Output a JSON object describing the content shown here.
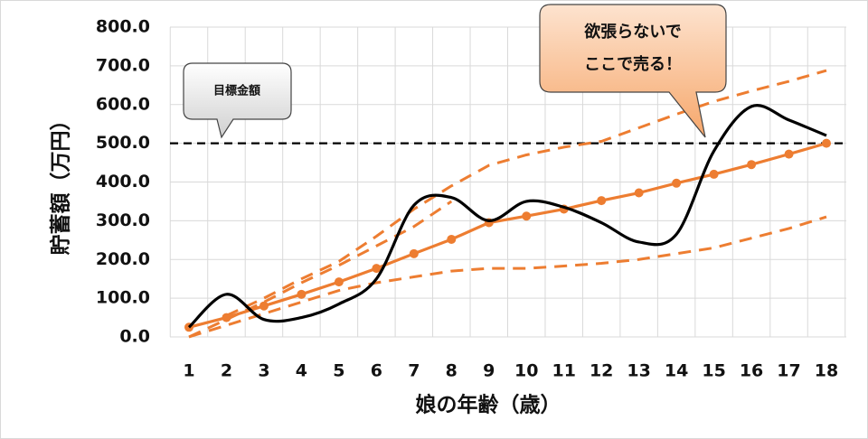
{
  "chart_data": {
    "type": "line",
    "x_label": "娘の年齢（歳）",
    "y_label": "貯蓄額（万円）",
    "categories": [
      "1",
      "2",
      "3",
      "4",
      "5",
      "6",
      "7",
      "8",
      "9",
      "10",
      "11",
      "12",
      "13",
      "14",
      "15",
      "16",
      "17",
      "18"
    ],
    "ylim": [
      0,
      800
    ],
    "yticks": [
      {
        "value": 0,
        "label": "0.0"
      },
      {
        "value": 100,
        "label": "100.0"
      },
      {
        "value": 200,
        "label": "200.0"
      },
      {
        "value": 300,
        "label": "300.0"
      },
      {
        "value": 400,
        "label": "400.0"
      },
      {
        "value": 500,
        "label": "500.0"
      },
      {
        "value": 600,
        "label": "600.0"
      },
      {
        "value": 700,
        "label": "700.0"
      },
      {
        "value": 800,
        "label": "800.0"
      }
    ],
    "grid": true,
    "reference_line": {
      "value": 500,
      "color": "#000000"
    },
    "series": [
      {
        "color": "#ed7d31",
        "style": "dashed",
        "values": [
          0,
          45,
          90,
          140,
          185,
          235,
          285,
          350,
          null,
          null,
          null,
          null,
          null,
          null,
          null,
          null,
          null,
          null
        ]
      },
      {
        "color": "#ed7d31",
        "style": "dashed",
        "values": [
          null,
          55,
          100,
          150,
          195,
          260,
          330,
          390,
          443,
          470,
          490,
          505,
          540,
          575,
          608,
          635,
          660,
          688
        ]
      },
      {
        "color": "#ed7d31",
        "style": "dashed",
        "values": [
          0,
          30,
          60,
          90,
          120,
          140,
          155,
          170,
          177,
          177,
          183,
          190,
          200,
          215,
          230,
          255,
          280,
          310
        ]
      },
      {
        "color": "#ed7d31",
        "style": "markers",
        "values": [
          25,
          50,
          80,
          110,
          142,
          177,
          215,
          252,
          295,
          312,
          330,
          352,
          372,
          397,
          420,
          445,
          472,
          500
        ]
      },
      {
        "color": "#000000",
        "style": "smooth",
        "values": [
          25,
          110,
          45,
          50,
          85,
          150,
          340,
          360,
          300,
          350,
          335,
          295,
          245,
          265,
          480,
          595,
          560,
          520
        ]
      }
    ],
    "annotations": [
      {
        "lines": [
          "目標金額"
        ]
      },
      {
        "lines": [
          "欲張らないで",
          "ここで売る！"
        ]
      }
    ]
  }
}
